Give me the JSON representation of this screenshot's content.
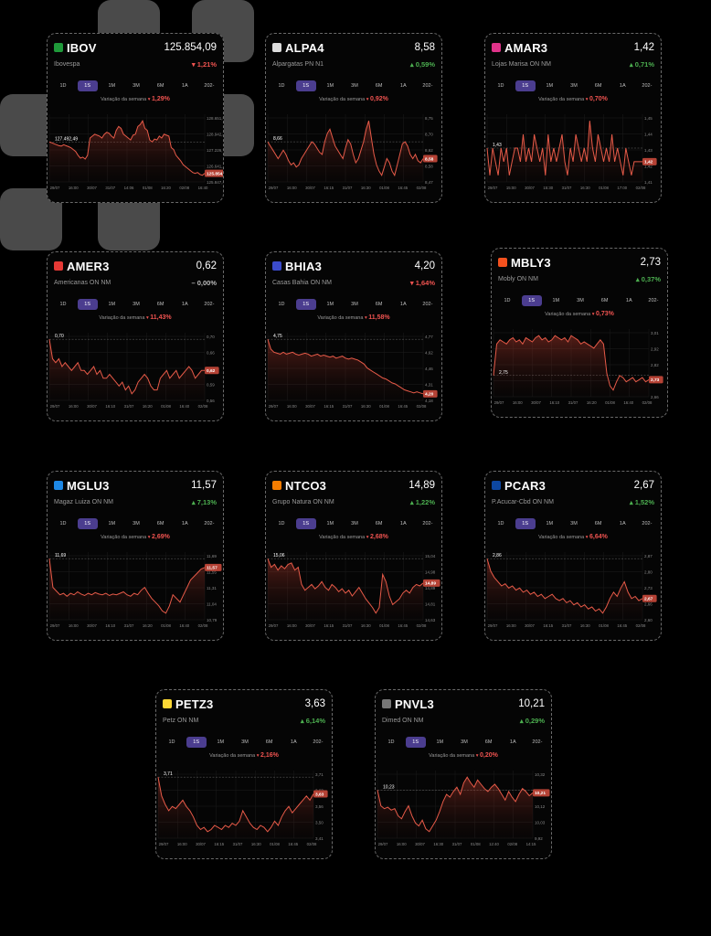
{
  "colors": {
    "background": "#000000",
    "card": "#050505",
    "accent_tab": "#4b3d8f",
    "down": "#ef5350",
    "up": "#4caf50",
    "line": "#e65a48"
  },
  "tabs": [
    "1D",
    "1S",
    "1M",
    "3M",
    "6M",
    "1A",
    "202-"
  ],
  "active_tab": "1S",
  "week_label": "Variação da semana",
  "cards": [
    {
      "ticker": "IBOV",
      "name": "Ibovespa",
      "price": "125.854,09",
      "change": "1,21%",
      "direction": "down",
      "week_change": "1,29%",
      "flag": "#1f9a3a",
      "flag_icon": "brazil-flag-icon",
      "y_ticks": [
        "128.651,83",
        "128.942,36",
        "127.226,78",
        "126.641,14",
        "125.847,48"
      ],
      "x_ticks": [
        "29/07",
        "16:00",
        "30/07",
        "31/07",
        "14:06",
        "01/08",
        "16:20",
        "02/08",
        "16:40"
      ],
      "start_label": "127.492,49",
      "end_label": "125.854,09",
      "chart_data": {
        "type": "line",
        "y": [
          127492,
          127450,
          127400,
          127350,
          127300,
          127280,
          127350,
          127300,
          127250,
          127200,
          127100,
          127000,
          126800,
          126650,
          126700,
          126600,
          126800,
          127700,
          127800,
          127900,
          127850,
          127800,
          127700,
          127900,
          128000,
          127950,
          127800,
          127700,
          128100,
          128300,
          128200,
          127900,
          127800,
          127700,
          127600,
          127850,
          127900,
          128300,
          128400,
          128600,
          128200,
          128100,
          127600,
          127500,
          127650,
          127600,
          127800,
          127700,
          127900,
          127850,
          127800,
          127200,
          127100,
          126800,
          126650,
          126500,
          126300,
          126200,
          126100,
          126000,
          125900,
          125850,
          125900,
          125800,
          125750,
          125854
        ]
      }
    },
    {
      "ticker": "ALPA4",
      "name": "Alpargatas PN N1",
      "price": "8,58",
      "change": "0,59%",
      "direction": "up",
      "week_change": "0,92%",
      "flag": "#dddddd",
      "flag_icon": "alpargatas-logo-icon",
      "y_ticks": [
        "8,75",
        "8,70",
        "8,62",
        "8,58",
        "8,47"
      ],
      "x_ticks": [
        "29/07",
        "16:00",
        "30/07",
        "16:15",
        "31/07",
        "16:30",
        "01/08",
        "16:45",
        "02/08"
      ],
      "start_label": "8,66",
      "end_label": "8,58",
      "chart_data": {
        "type": "line",
        "y": [
          8.66,
          8.64,
          8.62,
          8.6,
          8.58,
          8.6,
          8.62,
          8.6,
          8.57,
          8.55,
          8.56,
          8.54,
          8.55,
          8.58,
          8.6,
          8.62,
          8.64,
          8.66,
          8.65,
          8.63,
          8.61,
          8.6,
          8.66,
          8.7,
          8.72,
          8.68,
          8.64,
          8.62,
          8.6,
          8.58,
          8.63,
          8.67,
          8.65,
          8.6,
          8.56,
          8.58,
          8.62,
          8.66,
          8.72,
          8.76,
          8.68,
          8.6,
          8.55,
          8.52,
          8.5,
          8.54,
          8.58,
          8.56,
          8.52,
          8.5,
          8.55,
          8.6,
          8.65,
          8.66,
          8.64,
          8.6,
          8.58,
          8.6,
          8.57,
          8.56,
          8.58
        ]
      }
    },
    {
      "ticker": "AMAR3",
      "name": "Lojas Marisa ON NM",
      "price": "1,42",
      "change": "0,71%",
      "direction": "up",
      "week_change": "0,70%",
      "flag": "#e0338a",
      "flag_icon": "marisa-logo-icon",
      "y_ticks": [
        "1,45",
        "1,44",
        "1,43",
        "1,42",
        "1,41"
      ],
      "x_ticks": [
        "29/07",
        "15:00",
        "30/07",
        "15:30",
        "31/07",
        "16:30",
        "01/08",
        "17:00",
        "02/08"
      ],
      "start_label": "1,43",
      "end_label": "1,42",
      "chart_data": {
        "type": "line",
        "y": [
          1.43,
          1.41,
          1.43,
          1.42,
          1.41,
          1.43,
          1.42,
          1.43,
          1.41,
          1.42,
          1.43,
          1.43,
          1.42,
          1.44,
          1.42,
          1.43,
          1.42,
          1.44,
          1.43,
          1.42,
          1.43,
          1.41,
          1.44,
          1.42,
          1.43,
          1.42,
          1.43,
          1.44,
          1.42,
          1.41,
          1.43,
          1.42,
          1.44,
          1.43,
          1.42,
          1.43,
          1.42,
          1.45,
          1.43,
          1.42,
          1.44,
          1.43,
          1.42,
          1.43,
          1.42,
          1.44,
          1.42,
          1.43,
          1.42,
          1.41,
          1.43,
          1.42,
          1.41,
          1.42,
          1.42,
          1.42,
          1.42
        ]
      }
    },
    {
      "ticker": "AMER3",
      "name": "Americanas ON NM",
      "price": "0,62",
      "change": "0,00%",
      "direction": "flat",
      "week_change": "11,43%",
      "flag": "#e53935",
      "flag_icon": "americanas-logo-icon",
      "y_ticks": [
        "0,70",
        "0,66",
        "0,62",
        "0,59",
        "0,56"
      ],
      "x_ticks": [
        "29/07",
        "16:00",
        "30/07",
        "16:10",
        "31/07",
        "16:20",
        "01/08",
        "16:40",
        "02/08"
      ],
      "start_label": "0,70",
      "end_label": "0,62",
      "chart_data": {
        "type": "line",
        "y": [
          0.7,
          0.65,
          0.64,
          0.65,
          0.63,
          0.64,
          0.63,
          0.62,
          0.63,
          0.64,
          0.62,
          0.62,
          0.61,
          0.62,
          0.63,
          0.61,
          0.62,
          0.6,
          0.6,
          0.61,
          0.6,
          0.59,
          0.58,
          0.59,
          0.57,
          0.58,
          0.56,
          0.57,
          0.59,
          0.6,
          0.61,
          0.6,
          0.58,
          0.57,
          0.57,
          0.6,
          0.61,
          0.62,
          0.6,
          0.61,
          0.62,
          0.6,
          0.61,
          0.62,
          0.63,
          0.62,
          0.6,
          0.61,
          0.62,
          0.62
        ]
      }
    },
    {
      "ticker": "BHIA3",
      "name": "Casas Bahia ON NM",
      "price": "4,20",
      "change": "1,64%",
      "direction": "down",
      "week_change": "11,58%",
      "flag": "#3b4bcc",
      "flag_icon": "casas-bahia-logo-icon",
      "y_ticks": [
        "4,77",
        "4,62",
        "4,46",
        "4,31",
        "4,18"
      ],
      "x_ticks": [
        "29/07",
        "16:00",
        "30/07",
        "16:15",
        "31/07",
        "16:30",
        "01/08",
        "16:45",
        "02/08"
      ],
      "start_label": "4,75",
      "end_label": "4,20",
      "chart_data": {
        "type": "line",
        "y": [
          4.75,
          4.65,
          4.62,
          4.61,
          4.6,
          4.62,
          4.6,
          4.61,
          4.62,
          4.6,
          4.59,
          4.6,
          4.61,
          4.6,
          4.58,
          4.59,
          4.6,
          4.58,
          4.59,
          4.58,
          4.57,
          4.58,
          4.56,
          4.57,
          4.58,
          4.56,
          4.55,
          4.56,
          4.55,
          4.54,
          4.52,
          4.5,
          4.46,
          4.44,
          4.42,
          4.4,
          4.38,
          4.36,
          4.35,
          4.33,
          4.31,
          4.3,
          4.28,
          4.26,
          4.24,
          4.23,
          4.22,
          4.21,
          4.22,
          4.21,
          4.2
        ]
      }
    },
    {
      "ticker": "MBLY3",
      "name": "Mobly ON NM",
      "price": "2,73",
      "change": "0,37%",
      "direction": "up",
      "week_change": "0,73%",
      "flag": "#f4511e",
      "flag_icon": "mobly-logo-icon",
      "y_ticks": [
        "3,01",
        "2,92",
        "2,82",
        "2,73",
        "2,66"
      ],
      "x_ticks": [
        "29/07",
        "16:00",
        "30/07",
        "16:10",
        "31/07",
        "16:20",
        "01/08",
        "16:40",
        "02/08"
      ],
      "start_label": "2,75",
      "end_label": "2,73",
      "chart_data": {
        "type": "line",
        "y": [
          2.75,
          2.9,
          2.92,
          2.91,
          2.9,
          2.92,
          2.93,
          2.91,
          2.92,
          2.9,
          2.93,
          2.92,
          2.91,
          2.93,
          2.94,
          2.92,
          2.93,
          2.91,
          2.92,
          2.94,
          2.93,
          2.92,
          2.93,
          2.91,
          2.94,
          2.93,
          2.92,
          2.9,
          2.91,
          2.9,
          2.89,
          2.88,
          2.9,
          2.92,
          2.9,
          2.76,
          2.7,
          2.68,
          2.72,
          2.75,
          2.74,
          2.72,
          2.73,
          2.74,
          2.72,
          2.73,
          2.74,
          2.72,
          2.73
        ]
      }
    },
    {
      "ticker": "MGLU3",
      "name": "Magaz Luiza ON NM",
      "price": "11,57",
      "change": "7,13%",
      "direction": "up",
      "week_change": "2,69%",
      "flag": "#1e88e5",
      "flag_icon": "magalu-logo-icon",
      "y_ticks": [
        "11,69",
        "11,55",
        "11,31",
        "11,04",
        "10,79"
      ],
      "x_ticks": [
        "29/07",
        "16:00",
        "30/07",
        "16:10",
        "31/07",
        "16:20",
        "01/08",
        "16:40",
        "02/08"
      ],
      "start_label": "11,69",
      "end_label": "11,57",
      "chart_data": {
        "type": "line",
        "y": [
          11.69,
          11.3,
          11.25,
          11.2,
          11.22,
          11.18,
          11.22,
          11.2,
          11.24,
          11.21,
          11.19,
          11.22,
          11.2,
          11.23,
          11.21,
          11.2,
          11.22,
          11.19,
          11.21,
          11.2,
          11.22,
          11.24,
          11.2,
          11.18,
          11.22,
          11.2,
          11.26,
          11.3,
          11.22,
          11.15,
          11.1,
          11.05,
          10.98,
          10.95,
          11.05,
          11.2,
          11.15,
          11.1,
          11.2,
          11.3,
          11.4,
          11.45,
          11.5,
          11.55,
          11.57
        ]
      }
    },
    {
      "ticker": "NTCO3",
      "name": "Grupo Natura ON NM",
      "price": "14,89",
      "change": "1,22%",
      "direction": "up",
      "week_change": "2,68%",
      "flag": "#f57c00",
      "flag_icon": "natura-logo-icon",
      "y_ticks": [
        "15,04",
        "14,98",
        "14,89",
        "14,81",
        "14,63"
      ],
      "x_ticks": [
        "29/07",
        "16:00",
        "30/07",
        "16:15",
        "31/07",
        "16:30",
        "01/08",
        "16:45",
        "02/08"
      ],
      "start_label": "15,06",
      "end_label": "14,89",
      "chart_data": {
        "type": "line",
        "y": [
          15.06,
          15.0,
          15.02,
          14.98,
          15.01,
          14.99,
          15.02,
          15.03,
          14.98,
          15.0,
          14.88,
          14.84,
          14.86,
          14.88,
          14.85,
          14.87,
          14.9,
          14.86,
          14.84,
          14.88,
          14.86,
          14.83,
          14.85,
          14.82,
          14.84,
          14.8,
          14.83,
          14.86,
          14.82,
          14.78,
          14.75,
          14.72,
          14.68,
          14.72,
          14.95,
          14.9,
          14.8,
          14.74,
          14.76,
          14.78,
          14.82,
          14.84,
          14.82,
          14.86,
          14.88,
          14.87,
          14.89
        ]
      }
    },
    {
      "ticker": "PCAR3",
      "name": "P.Acucar-Cbd ON NM",
      "price": "2,67",
      "change": "1,52%",
      "direction": "up",
      "week_change": "6,64%",
      "flag": "#0d47a1",
      "flag_icon": "pao-de-acucar-logo-icon",
      "y_ticks": [
        "2,87",
        "2,80",
        "2,73",
        "2,66",
        "2,60"
      ],
      "x_ticks": [
        "29/07",
        "16:00",
        "30/07",
        "16:15",
        "31/07",
        "16:30",
        "01/08",
        "16:45",
        "02/08"
      ],
      "start_label": "2,86",
      "end_label": "2,67",
      "chart_data": {
        "type": "line",
        "y": [
          2.86,
          2.8,
          2.77,
          2.75,
          2.73,
          2.74,
          2.72,
          2.73,
          2.71,
          2.72,
          2.7,
          2.71,
          2.69,
          2.7,
          2.68,
          2.69,
          2.67,
          2.68,
          2.69,
          2.67,
          2.66,
          2.67,
          2.65,
          2.66,
          2.64,
          2.65,
          2.63,
          2.64,
          2.62,
          2.63,
          2.61,
          2.62,
          2.6,
          2.63,
          2.67,
          2.7,
          2.68,
          2.72,
          2.75,
          2.7,
          2.67,
          2.68,
          2.66,
          2.67
        ]
      }
    },
    {
      "ticker": "PETZ3",
      "name": "Petz ON NM",
      "price": "3,63",
      "change": "6,14%",
      "direction": "up",
      "week_change": "2,16%",
      "flag": "#fdd835",
      "flag_icon": "petz-logo-icon",
      "y_ticks": [
        "3,71",
        "3,63",
        "3,56",
        "3,50",
        "3,41"
      ],
      "x_ticks": [
        "29/07",
        "16:00",
        "30/07",
        "16:15",
        "31/07",
        "16:30",
        "01/08",
        "16:45",
        "02/08"
      ],
      "start_label": "3,71",
      "end_label": "3,63",
      "chart_data": {
        "type": "line",
        "y": [
          3.71,
          3.62,
          3.58,
          3.55,
          3.57,
          3.56,
          3.58,
          3.6,
          3.57,
          3.55,
          3.52,
          3.48,
          3.46,
          3.47,
          3.45,
          3.46,
          3.48,
          3.47,
          3.46,
          3.48,
          3.47,
          3.49,
          3.48,
          3.5,
          3.55,
          3.52,
          3.49,
          3.47,
          3.46,
          3.48,
          3.47,
          3.45,
          3.47,
          3.5,
          3.48,
          3.52,
          3.55,
          3.57,
          3.54,
          3.56,
          3.58,
          3.6,
          3.62,
          3.6,
          3.63
        ]
      }
    },
    {
      "ticker": "PNVL3",
      "name": "Dimed ON NM",
      "price": "10,21",
      "change": "0,29%",
      "direction": "up",
      "week_change": "0,20%",
      "flag": "#777777",
      "flag_icon": "dimed-logo-icon",
      "y_ticks": [
        "10,32",
        "10,21",
        "10,12",
        "10,03",
        "9,92"
      ],
      "x_ticks": [
        "29/07",
        "16:00",
        "30/07",
        "16:30",
        "31/07",
        "01/08",
        "12:40",
        "02/08",
        "14:15"
      ],
      "start_label": "10,23",
      "end_label": "10,21",
      "chart_data": {
        "type": "line",
        "y": [
          10.23,
          10.12,
          10.1,
          10.11,
          10.09,
          10.1,
          10.05,
          10.03,
          10.08,
          10.12,
          10.05,
          10.0,
          9.98,
          10.02,
          9.96,
          9.94,
          9.98,
          10.02,
          10.08,
          10.15,
          10.2,
          10.18,
          10.22,
          10.25,
          10.2,
          10.28,
          10.32,
          10.28,
          10.25,
          10.3,
          10.27,
          10.24,
          10.22,
          10.25,
          10.27,
          10.24,
          10.2,
          10.16,
          10.22,
          10.18,
          10.15,
          10.2,
          10.24,
          10.22,
          10.19,
          10.21
        ]
      }
    }
  ]
}
